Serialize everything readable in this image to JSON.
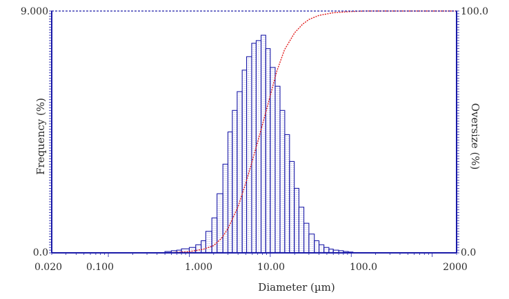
{
  "chart_data": {
    "type": "bar",
    "xlabel": "Diameter (µm)",
    "ylabel_left": "Frequency (%)",
    "ylabel_right": "Oversize (%)",
    "x_scale": "log",
    "xlim": [
      0.02,
      2000
    ],
    "ylim_left": [
      0,
      9
    ],
    "ylim_right": [
      0,
      100
    ],
    "grid": false,
    "x_ticks": [
      {
        "value": 0.02,
        "label": "0.020"
      },
      {
        "value": 0.1,
        "label": "0.100"
      },
      {
        "value": 1,
        "label": "1.000"
      },
      {
        "value": 10,
        "label": "10.00"
      },
      {
        "value": 100,
        "label": "100.0"
      },
      {
        "value": 2000,
        "label": "2000"
      }
    ],
    "y_left_ticks": [
      {
        "value": 0,
        "label": "0.0"
      },
      {
        "value": 9,
        "label": "9.000"
      }
    ],
    "y_right_ticks": [
      {
        "value": 0,
        "label": "0.0"
      },
      {
        "value": 100,
        "label": "100.0"
      }
    ],
    "bar_series": {
      "name": "Frequency (%)",
      "color": "#1a1aa8",
      "edges": [
        0.5,
        0.6,
        0.7,
        0.8,
        1.0,
        1.2,
        1.4,
        1.6,
        1.9,
        2.2,
        2.6,
        3.0,
        3.4,
        3.9,
        4.5,
        5.1,
        5.9,
        6.7,
        7.7,
        8.8,
        10.0,
        11.5,
        13.2,
        15.1,
        17.3,
        19.8,
        22.6,
        26.0,
        30.0,
        35.0,
        40.0,
        46.0,
        53.0,
        60.0,
        70.0,
        80.0,
        92.0,
        105.0
      ],
      "values": [
        0.05,
        0.08,
        0.1,
        0.15,
        0.2,
        0.3,
        0.45,
        0.8,
        1.3,
        2.2,
        3.3,
        4.5,
        5.3,
        6.0,
        6.8,
        7.3,
        7.8,
        7.9,
        8.1,
        7.6,
        6.9,
        6.2,
        5.3,
        4.4,
        3.4,
        2.4,
        1.7,
        1.1,
        0.7,
        0.45,
        0.3,
        0.2,
        0.14,
        0.1,
        0.08,
        0.05,
        0.03
      ]
    },
    "line_series": {
      "name": "Oversize (%)",
      "color": "#e01818",
      "x": [
        0.5,
        0.8,
        1.0,
        1.5,
        2.0,
        2.5,
        3.0,
        4.0,
        5.0,
        6.0,
        7.0,
        8.0,
        10.0,
        12.0,
        15.0,
        20.0,
        25.0,
        30.0,
        40.0,
        60.0,
        100.0,
        150.0,
        300.0,
        2000.0
      ],
      "y": [
        0.0,
        0.3,
        0.5,
        1.5,
        3.0,
        6.0,
        10.0,
        19.0,
        29.0,
        38.0,
        46.0,
        53.0,
        65.0,
        75.0,
        84.0,
        91.0,
        94.5,
        96.5,
        98.2,
        99.3,
        99.8,
        100.0,
        100.0,
        100.0
      ]
    }
  }
}
